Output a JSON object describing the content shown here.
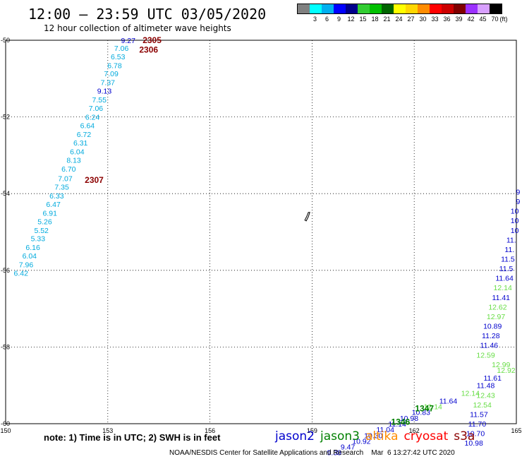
{
  "header": {
    "title": "12:00 – 23:59 UTC 03/05/2020",
    "subtitle": "12 hour collection of altimeter wave heights"
  },
  "legend": {
    "unit": "(ft)",
    "entries": [
      {
        "label": "",
        "color": "#808080"
      },
      {
        "label": "3",
        "color": "#00ffff"
      },
      {
        "label": "6",
        "color": "#00b0f0"
      },
      {
        "label": "9",
        "color": "#0000ff"
      },
      {
        "label": "12",
        "color": "#00008b"
      },
      {
        "label": "15",
        "color": "#32cd32"
      },
      {
        "label": "18",
        "color": "#00c000"
      },
      {
        "label": "21",
        "color": "#006400"
      },
      {
        "label": "24",
        "color": "#ffff00"
      },
      {
        "label": "27",
        "color": "#ffd700"
      },
      {
        "label": "30",
        "color": "#ff8c00"
      },
      {
        "label": "33",
        "color": "#ff0000"
      },
      {
        "label": "36",
        "color": "#cc0000"
      },
      {
        "label": "39",
        "color": "#800000"
      },
      {
        "label": "42",
        "color": "#9b30ff"
      },
      {
        "label": "45",
        "color": "#d8a0ff"
      },
      {
        "label": "70",
        "color": "#000000"
      }
    ]
  },
  "map": {
    "lon_ticks": [
      "150",
      "153",
      "156",
      "159",
      "162",
      "165"
    ],
    "lat_ticks": [
      "-50",
      "-52",
      "-54",
      "-56",
      "-58",
      "-60"
    ],
    "island_label": "",
    "track_labels": [
      {
        "text": "2305",
        "lon": 154.3,
        "lat": -50.0,
        "color": "#8b0000"
      },
      {
        "text": "2306",
        "lon": 154.2,
        "lat": -50.25,
        "color": "#8b0000"
      },
      {
        "text": "2307",
        "lon": 152.6,
        "lat": -53.65,
        "color": "#8b0000"
      },
      {
        "text": "1347",
        "lon": 162.3,
        "lat": -59.6,
        "color": "#008000"
      },
      {
        "text": "1346",
        "lon": 161.6,
        "lat": -59.95,
        "color": "#008000"
      }
    ],
    "values": [
      {
        "text": "9.27",
        "lon": 153.6,
        "lat": -50.0,
        "color": "#0000cd"
      },
      {
        "text": "7.06",
        "lon": 153.4,
        "lat": -50.2,
        "color": "#00aadd"
      },
      {
        "text": "6.53",
        "lon": 153.3,
        "lat": -50.42,
        "color": "#00aadd"
      },
      {
        "text": "6.78",
        "lon": 153.2,
        "lat": -50.65,
        "color": "#00aadd"
      },
      {
        "text": "7.09",
        "lon": 153.1,
        "lat": -50.87,
        "color": "#00aadd"
      },
      {
        "text": "7.37",
        "lon": 153.0,
        "lat": -51.1,
        "color": "#00aadd"
      },
      {
        "text": "9.13",
        "lon": 152.9,
        "lat": -51.32,
        "color": "#0000cd"
      },
      {
        "text": "7.55",
        "lon": 152.75,
        "lat": -51.55,
        "color": "#00aadd"
      },
      {
        "text": "7.06",
        "lon": 152.65,
        "lat": -51.77,
        "color": "#00aadd"
      },
      {
        "text": "6.24",
        "lon": 152.55,
        "lat": -52.0,
        "color": "#00aadd"
      },
      {
        "text": "6.64",
        "lon": 152.4,
        "lat": -52.22,
        "color": "#00aadd"
      },
      {
        "text": "6.72",
        "lon": 152.3,
        "lat": -52.45,
        "color": "#00aadd"
      },
      {
        "text": "6.31",
        "lon": 152.2,
        "lat": -52.67,
        "color": "#00aadd"
      },
      {
        "text": "6.04",
        "lon": 152.1,
        "lat": -52.9,
        "color": "#00aadd"
      },
      {
        "text": "8.13",
        "lon": 152.0,
        "lat": -53.12,
        "color": "#00aadd"
      },
      {
        "text": "6.70",
        "lon": 151.85,
        "lat": -53.35,
        "color": "#00aadd"
      },
      {
        "text": "7.07",
        "lon": 151.75,
        "lat": -53.6,
        "color": "#00aadd"
      },
      {
        "text": "7.35",
        "lon": 151.65,
        "lat": -53.82,
        "color": "#00aadd"
      },
      {
        "text": "6.33",
        "lon": 151.5,
        "lat": -54.05,
        "color": "#00aadd"
      },
      {
        "text": "6.47",
        "lon": 151.4,
        "lat": -54.27,
        "color": "#00aadd"
      },
      {
        "text": "6.91",
        "lon": 151.3,
        "lat": -54.5,
        "color": "#00aadd"
      },
      {
        "text": "5.26",
        "lon": 151.15,
        "lat": -54.72,
        "color": "#00aadd"
      },
      {
        "text": "5.52",
        "lon": 151.05,
        "lat": -54.95,
        "color": "#00aadd"
      },
      {
        "text": "5.33",
        "lon": 150.95,
        "lat": -55.17,
        "color": "#00aadd"
      },
      {
        "text": "6.16",
        "lon": 150.8,
        "lat": -55.4,
        "color": "#00aadd"
      },
      {
        "text": "6.04",
        "lon": 150.7,
        "lat": -55.62,
        "color": "#00aadd"
      },
      {
        "text": "7.96",
        "lon": 150.6,
        "lat": -55.85,
        "color": "#00aadd"
      },
      {
        "text": "6.42",
        "lon": 150.45,
        "lat": -56.07,
        "color": "#00aadd"
      },
      {
        "text": "9",
        "lon": 165.05,
        "lat": -53.95,
        "color": "#0000cd"
      },
      {
        "text": "9",
        "lon": 165.05,
        "lat": -54.2,
        "color": "#0000cd"
      },
      {
        "text": "10",
        "lon": 164.95,
        "lat": -54.45,
        "color": "#0000cd"
      },
      {
        "text": "10",
        "lon": 164.95,
        "lat": -54.7,
        "color": "#0000cd"
      },
      {
        "text": "10",
        "lon": 164.95,
        "lat": -54.95,
        "color": "#0000cd"
      },
      {
        "text": "11.",
        "lon": 164.85,
        "lat": -55.2,
        "color": "#0000cd"
      },
      {
        "text": "11.",
        "lon": 164.8,
        "lat": -55.45,
        "color": "#0000cd"
      },
      {
        "text": "11.5",
        "lon": 164.75,
        "lat": -55.7,
        "color": "#0000cd"
      },
      {
        "text": "11.5",
        "lon": 164.7,
        "lat": -55.95,
        "color": "#0000cd"
      },
      {
        "text": "11.64",
        "lon": 164.65,
        "lat": -56.2,
        "color": "#0000cd"
      },
      {
        "text": "12.14",
        "lon": 164.6,
        "lat": -56.45,
        "color": "#66dd44"
      },
      {
        "text": "11.41",
        "lon": 164.55,
        "lat": -56.7,
        "color": "#0000cd"
      },
      {
        "text": "12.62",
        "lon": 164.45,
        "lat": -56.95,
        "color": "#66dd44"
      },
      {
        "text": "12.97",
        "lon": 164.4,
        "lat": -57.2,
        "color": "#66dd44"
      },
      {
        "text": "10.89",
        "lon": 164.3,
        "lat": -57.45,
        "color": "#0000cd"
      },
      {
        "text": "11.28",
        "lon": 164.25,
        "lat": -57.7,
        "color": "#0000cd"
      },
      {
        "text": "11.46",
        "lon": 164.2,
        "lat": -57.95,
        "color": "#0000cd"
      },
      {
        "text": "12.59",
        "lon": 164.1,
        "lat": -58.2,
        "color": "#66dd44"
      },
      {
        "text": "12.99",
        "lon": 164.55,
        "lat": -58.45,
        "color": "#66dd44"
      },
      {
        "text": "12.92",
        "lon": 164.7,
        "lat": -58.6,
        "color": "#66dd44"
      },
      {
        "text": "11.61",
        "lon": 164.3,
        "lat": -58.8,
        "color": "#0000cd"
      },
      {
        "text": "11.48",
        "lon": 164.1,
        "lat": -59.0,
        "color": "#0000cd"
      },
      {
        "text": "12.43",
        "lon": 164.1,
        "lat": -59.25,
        "color": "#66dd44"
      },
      {
        "text": "12.54",
        "lon": 164.0,
        "lat": -59.5,
        "color": "#66dd44"
      },
      {
        "text": "11.57",
        "lon": 163.9,
        "lat": -59.75,
        "color": "#0000cd"
      },
      {
        "text": "11.70",
        "lon": 163.85,
        "lat": -60.0,
        "color": "#0000cd"
      },
      {
        "text": "10.70",
        "lon": 163.8,
        "lat": -60.25,
        "color": "#0000cd"
      },
      {
        "text": "10.98",
        "lon": 163.75,
        "lat": -60.5,
        "color": "#0000cd"
      },
      {
        "text": "12.14",
        "lon": 163.65,
        "lat": -59.2,
        "color": "#66dd44"
      },
      {
        "text": "11.64",
        "lon": 163.0,
        "lat": -59.4,
        "color": "#0000cd"
      },
      {
        "text": "12.14",
        "lon": 162.55,
        "lat": -59.55,
        "color": "#66dd44"
      },
      {
        "text": "10.83",
        "lon": 162.2,
        "lat": -59.7,
        "color": "#0000cd"
      },
      {
        "text": "10.98",
        "lon": 161.85,
        "lat": -59.85,
        "color": "#0000cd"
      },
      {
        "text": "11.14",
        "lon": 161.5,
        "lat": -60.0,
        "color": "#0000cd"
      },
      {
        "text": "11.04",
        "lon": 161.15,
        "lat": -60.15,
        "color": "#0000cd"
      },
      {
        "text": "10.30",
        "lon": 160.8,
        "lat": -60.3,
        "color": "#0000cd"
      },
      {
        "text": "10.92",
        "lon": 160.45,
        "lat": -60.45,
        "color": "#0000cd"
      },
      {
        "text": "9.47",
        "lon": 160.05,
        "lat": -60.6,
        "color": "#0000cd"
      },
      {
        "text": "9.38",
        "lon": 159.65,
        "lat": -60.75,
        "color": "#0000cd"
      }
    ]
  },
  "satellites": [
    {
      "name": "jason2",
      "color": "#0000cd"
    },
    {
      "name": "jason3",
      "color": "#008000"
    },
    {
      "name": "altika",
      "color": "#ff8c00"
    },
    {
      "name": "cryosat",
      "color": "#ff0000"
    },
    {
      "name": "s3a",
      "color": "#8b0000"
    }
  ],
  "note": "note:  1) Time is in UTC; 2) SWH is in feet",
  "footer": "NOAA/NESDIS Center for Satellite Applications and Research    Mar  6 13:27:42 UTC 2020"
}
